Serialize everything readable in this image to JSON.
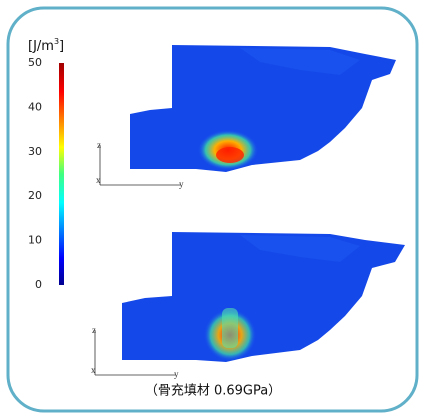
{
  "colorbar": {
    "unit": [
      "[J/m",
      "3",
      "]"
    ],
    "ticks": [
      0,
      10,
      20,
      30,
      40,
      50
    ]
  },
  "panels": [
    {
      "axes": {
        "z": "z",
        "x": "x",
        "y": "y"
      }
    },
    {
      "axes": {
        "z": "z",
        "x": "x",
        "y": "y"
      }
    }
  ],
  "caption": "（骨充填材 0.69GPa）"
}
